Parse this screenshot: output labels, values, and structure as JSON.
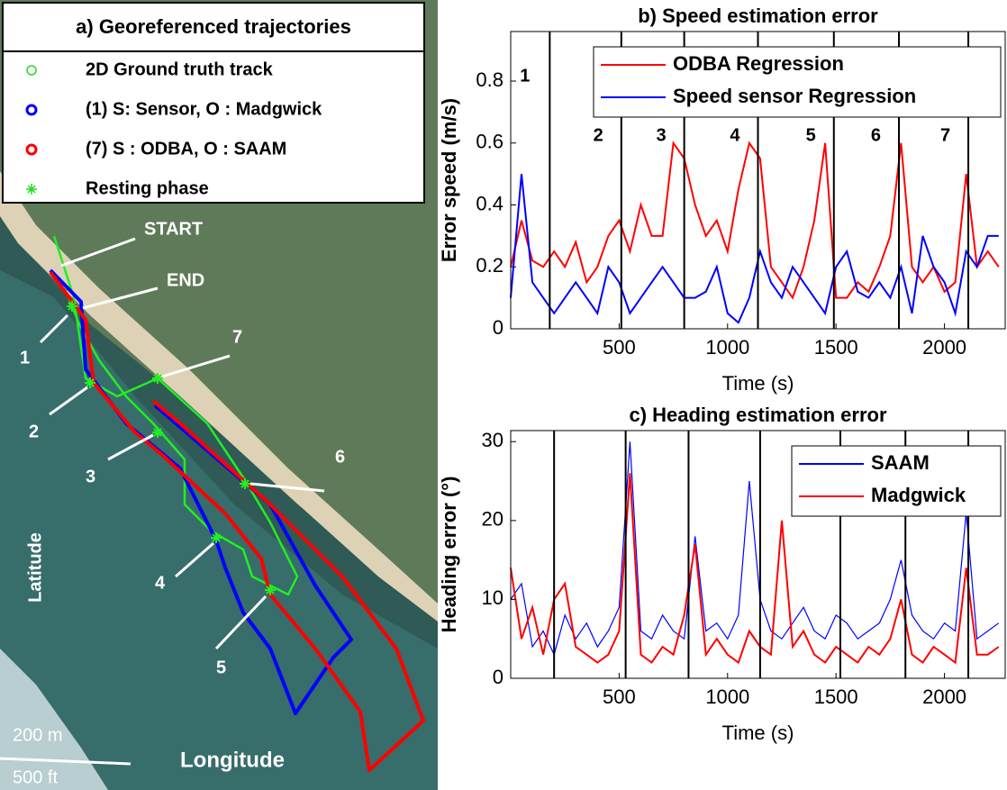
{
  "map": {
    "title": "a) Georeferenced trajectories",
    "legend": [
      {
        "label": "2D Ground truth track",
        "color": "#22dd22",
        "marker": "circle"
      },
      {
        "label": "(1) S: Sensor, O : Madgwick",
        "color": "#0000ff",
        "marker": "circle"
      },
      {
        "label": "(7) S : ODBA, O : SAAM",
        "color": "#ff0000",
        "marker": "circle"
      },
      {
        "label": "Resting phase",
        "color": "#22dd22",
        "marker": "star"
      }
    ],
    "start": "START",
    "end": "END",
    "phase_labels": [
      "1",
      "2",
      "3",
      "4",
      "5",
      "6",
      "7"
    ],
    "ylabel": "Latitude",
    "xlabel": "Longitude",
    "scale_m": "200 m",
    "scale_ft": "500 ft"
  },
  "chart_data": [
    {
      "type": "line",
      "title": "b) Speed estimation error",
      "xlabel": "Time (s)",
      "ylabel": "Error speed (m/s)",
      "x": [
        0,
        50,
        100,
        150,
        200,
        250,
        300,
        350,
        400,
        450,
        500,
        550,
        600,
        650,
        700,
        750,
        800,
        850,
        900,
        950,
        1000,
        1050,
        1100,
        1150,
        1200,
        1250,
        1300,
        1350,
        1400,
        1450,
        1500,
        1550,
        1600,
        1650,
        1700,
        1750,
        1800,
        1850,
        1900,
        1950,
        2000,
        2050,
        2100,
        2150,
        2200,
        2250
      ],
      "series": [
        {
          "name": "ODBA Regression",
          "color": "#ff0000",
          "values": [
            0.2,
            0.35,
            0.22,
            0.2,
            0.25,
            0.2,
            0.28,
            0.15,
            0.2,
            0.3,
            0.35,
            0.25,
            0.4,
            0.3,
            0.3,
            0.6,
            0.55,
            0.4,
            0.3,
            0.35,
            0.25,
            0.45,
            0.6,
            0.55,
            0.2,
            0.15,
            0.1,
            0.2,
            0.35,
            0.6,
            0.1,
            0.1,
            0.15,
            0.12,
            0.2,
            0.3,
            0.6,
            0.2,
            0.15,
            0.2,
            0.12,
            0.15,
            0.5,
            0.2,
            0.25,
            0.2
          ]
        },
        {
          "name": "Speed sensor Regression",
          "color": "#0000ff",
          "values": [
            0.1,
            0.5,
            0.15,
            0.1,
            0.05,
            0.1,
            0.15,
            0.1,
            0.05,
            0.2,
            0.15,
            0.05,
            0.1,
            0.15,
            0.2,
            0.15,
            0.1,
            0.1,
            0.12,
            0.2,
            0.05,
            0.02,
            0.1,
            0.25,
            0.15,
            0.1,
            0.2,
            0.15,
            0.1,
            0.05,
            0.2,
            0.25,
            0.12,
            0.1,
            0.15,
            0.1,
            0.2,
            0.05,
            0.3,
            0.2,
            0.15,
            0.05,
            0.25,
            0.2,
            0.3,
            0.3
          ]
        }
      ],
      "phases": {
        "x": [
          180,
          510,
          800,
          1140,
          1490,
          1790,
          2110
        ],
        "labels": [
          "1",
          "2",
          "3",
          "4",
          "5",
          "6",
          "7"
        ]
      },
      "xlim": [
        0,
        2280
      ],
      "xticks": [
        500,
        1000,
        1500,
        2000
      ],
      "ylim": [
        0,
        0.96
      ],
      "yticks": [
        0,
        0.2,
        0.4,
        0.6,
        0.8
      ],
      "legend": "upper right"
    },
    {
      "type": "line",
      "title": "c) Heading estimation error",
      "xlabel": "Time (s)",
      "ylabel": "Heading error (°)",
      "x": [
        0,
        50,
        100,
        150,
        200,
        250,
        300,
        350,
        400,
        450,
        500,
        550,
        600,
        650,
        700,
        750,
        800,
        850,
        900,
        950,
        1000,
        1050,
        1100,
        1150,
        1200,
        1250,
        1300,
        1350,
        1400,
        1450,
        1500,
        1550,
        1600,
        1650,
        1700,
        1750,
        1800,
        1850,
        1900,
        1950,
        2000,
        2050,
        2100,
        2150,
        2200,
        2250
      ],
      "series": [
        {
          "name": "SAAM",
          "color": "#0000ff",
          "values": [
            10,
            12,
            4,
            6,
            3,
            8,
            5,
            7,
            4,
            6,
            9,
            30,
            6,
            5,
            8,
            6,
            5,
            18,
            6,
            7,
            5,
            8,
            25,
            10,
            6,
            5,
            7,
            9,
            6,
            5,
            8,
            7,
            5,
            6,
            7,
            10,
            15,
            8,
            6,
            5,
            7,
            6,
            21,
            5,
            6,
            7
          ]
        },
        {
          "name": "Madgwick",
          "color": "#ff0000",
          "values": [
            14,
            5,
            9,
            3,
            10,
            12,
            4,
            3,
            2,
            3,
            6,
            26,
            3,
            2,
            4,
            3,
            8,
            17,
            3,
            5,
            3,
            2,
            6,
            4,
            3,
            20,
            4,
            6,
            3,
            2,
            4,
            3,
            2,
            4,
            3,
            5,
            10,
            3,
            2,
            4,
            3,
            2,
            14,
            3,
            3,
            4
          ]
        }
      ],
      "phases": {
        "x": [
          200,
          530,
          820,
          1150,
          1520,
          1820,
          2110
        ]
      },
      "xlim": [
        0,
        2280
      ],
      "xticks": [
        500,
        1000,
        1500,
        2000
      ],
      "ylim": [
        0,
        31.4
      ],
      "yticks": [
        0,
        10,
        20,
        30
      ],
      "legend": "upper right"
    }
  ]
}
